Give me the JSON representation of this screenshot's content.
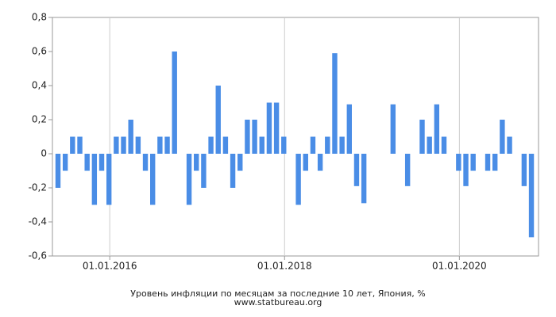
{
  "chart_data": {
    "type": "bar",
    "title": "Уровень инфляции по месяцам за последние 10 лет, Япония, %",
    "subtitle": "www.statbureau.org",
    "categories": [
      "2015-06",
      "2015-07",
      "2015-08",
      "2015-09",
      "2015-10",
      "2015-11",
      "2015-12",
      "2016-01",
      "2016-02",
      "2016-03",
      "2016-04",
      "2016-05",
      "2016-06",
      "2016-07",
      "2016-08",
      "2016-09",
      "2016-10",
      "2016-11",
      "2016-12",
      "2017-01",
      "2017-02",
      "2017-03",
      "2017-04",
      "2017-05",
      "2017-06",
      "2017-07",
      "2017-08",
      "2017-09",
      "2017-10",
      "2017-11",
      "2017-12",
      "2018-01",
      "2018-02",
      "2018-03",
      "2018-04",
      "2018-05",
      "2018-06",
      "2018-07",
      "2018-08",
      "2018-09",
      "2018-10",
      "2018-11",
      "2018-12",
      "2019-01",
      "2019-02",
      "2019-03",
      "2019-04",
      "2019-05",
      "2019-06",
      "2019-07",
      "2019-08",
      "2019-09",
      "2019-10",
      "2019-11",
      "2019-12",
      "2020-01",
      "2020-02",
      "2020-03",
      "2020-04",
      "2020-05",
      "2020-06",
      "2020-07",
      "2020-08",
      "2020-09",
      "2020-10",
      "2020-11"
    ],
    "values": [
      -0.2,
      -0.1,
      0.1,
      0.1,
      -0.1,
      -0.3,
      -0.1,
      -0.3,
      0.1,
      0.1,
      0.2,
      0.1,
      -0.1,
      -0.3,
      0.1,
      0.1,
      0.6,
      0,
      -0.3,
      -0.1,
      -0.2,
      0.1,
      0.4,
      0.1,
      -0.2,
      -0.1,
      0.2,
      0.2,
      0.1,
      0.3,
      0.3,
      0.1,
      0,
      -0.3,
      -0.1,
      0.1,
      -0.1,
      0.1,
      0.59,
      0.1,
      0.29,
      -0.19,
      -0.29,
      0,
      0,
      0,
      0.29,
      0,
      -0.19,
      0,
      0.2,
      0.1,
      0.29,
      0.1,
      0,
      -0.1,
      -0.19,
      -0.1,
      0,
      -0.1,
      -0.1,
      0.2,
      0.1,
      0,
      -0.19,
      -0.49
    ],
    "color": "#4a8de6",
    "ylim": [
      -0.6,
      0.8
    ],
    "yticks": [
      {
        "value": -0.6,
        "label": "-0,6"
      },
      {
        "value": -0.4,
        "label": "-0,4"
      },
      {
        "value": -0.2,
        "label": "-0,2"
      },
      0,
      {
        "value": 0.2,
        "label": "0,2"
      },
      {
        "value": 0.4,
        "label": "0,4"
      },
      {
        "value": 0.6,
        "label": "0,6"
      },
      {
        "value": 0.8,
        "label": "0,8"
      }
    ],
    "xticks": [
      {
        "value": "2016-01",
        "label": "01.01.2016"
      },
      {
        "value": "2018-01",
        "label": "01.01.2018"
      },
      {
        "value": "2020-01",
        "label": "01.01.2020"
      }
    ],
    "grid": true
  }
}
